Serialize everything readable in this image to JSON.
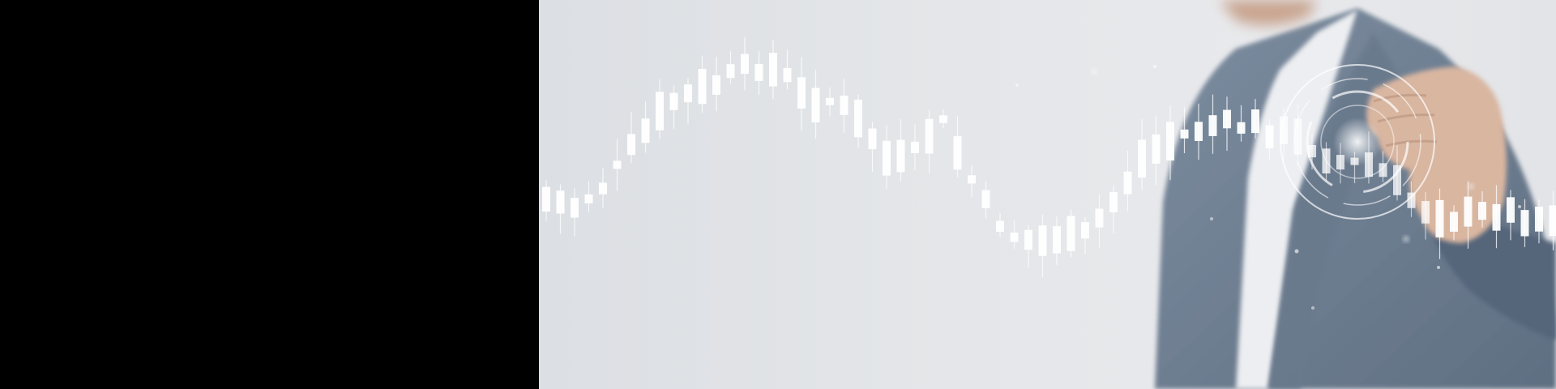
{
  "scene": {
    "left_panel_color": "#000000",
    "background_color": "#e4e6e9",
    "candle_color": "#ffffff",
    "jacket_color": "#6f7f92",
    "shirt_color": "#f2f3f5",
    "skin_color": "#d9b6a0",
    "hologram_color": "#ffffff"
  },
  "icons": {
    "candlestick_chart": "candlestick-chart-icon",
    "hologram_ring": "hologram-ring-icon",
    "hand": "hand-icon"
  }
}
